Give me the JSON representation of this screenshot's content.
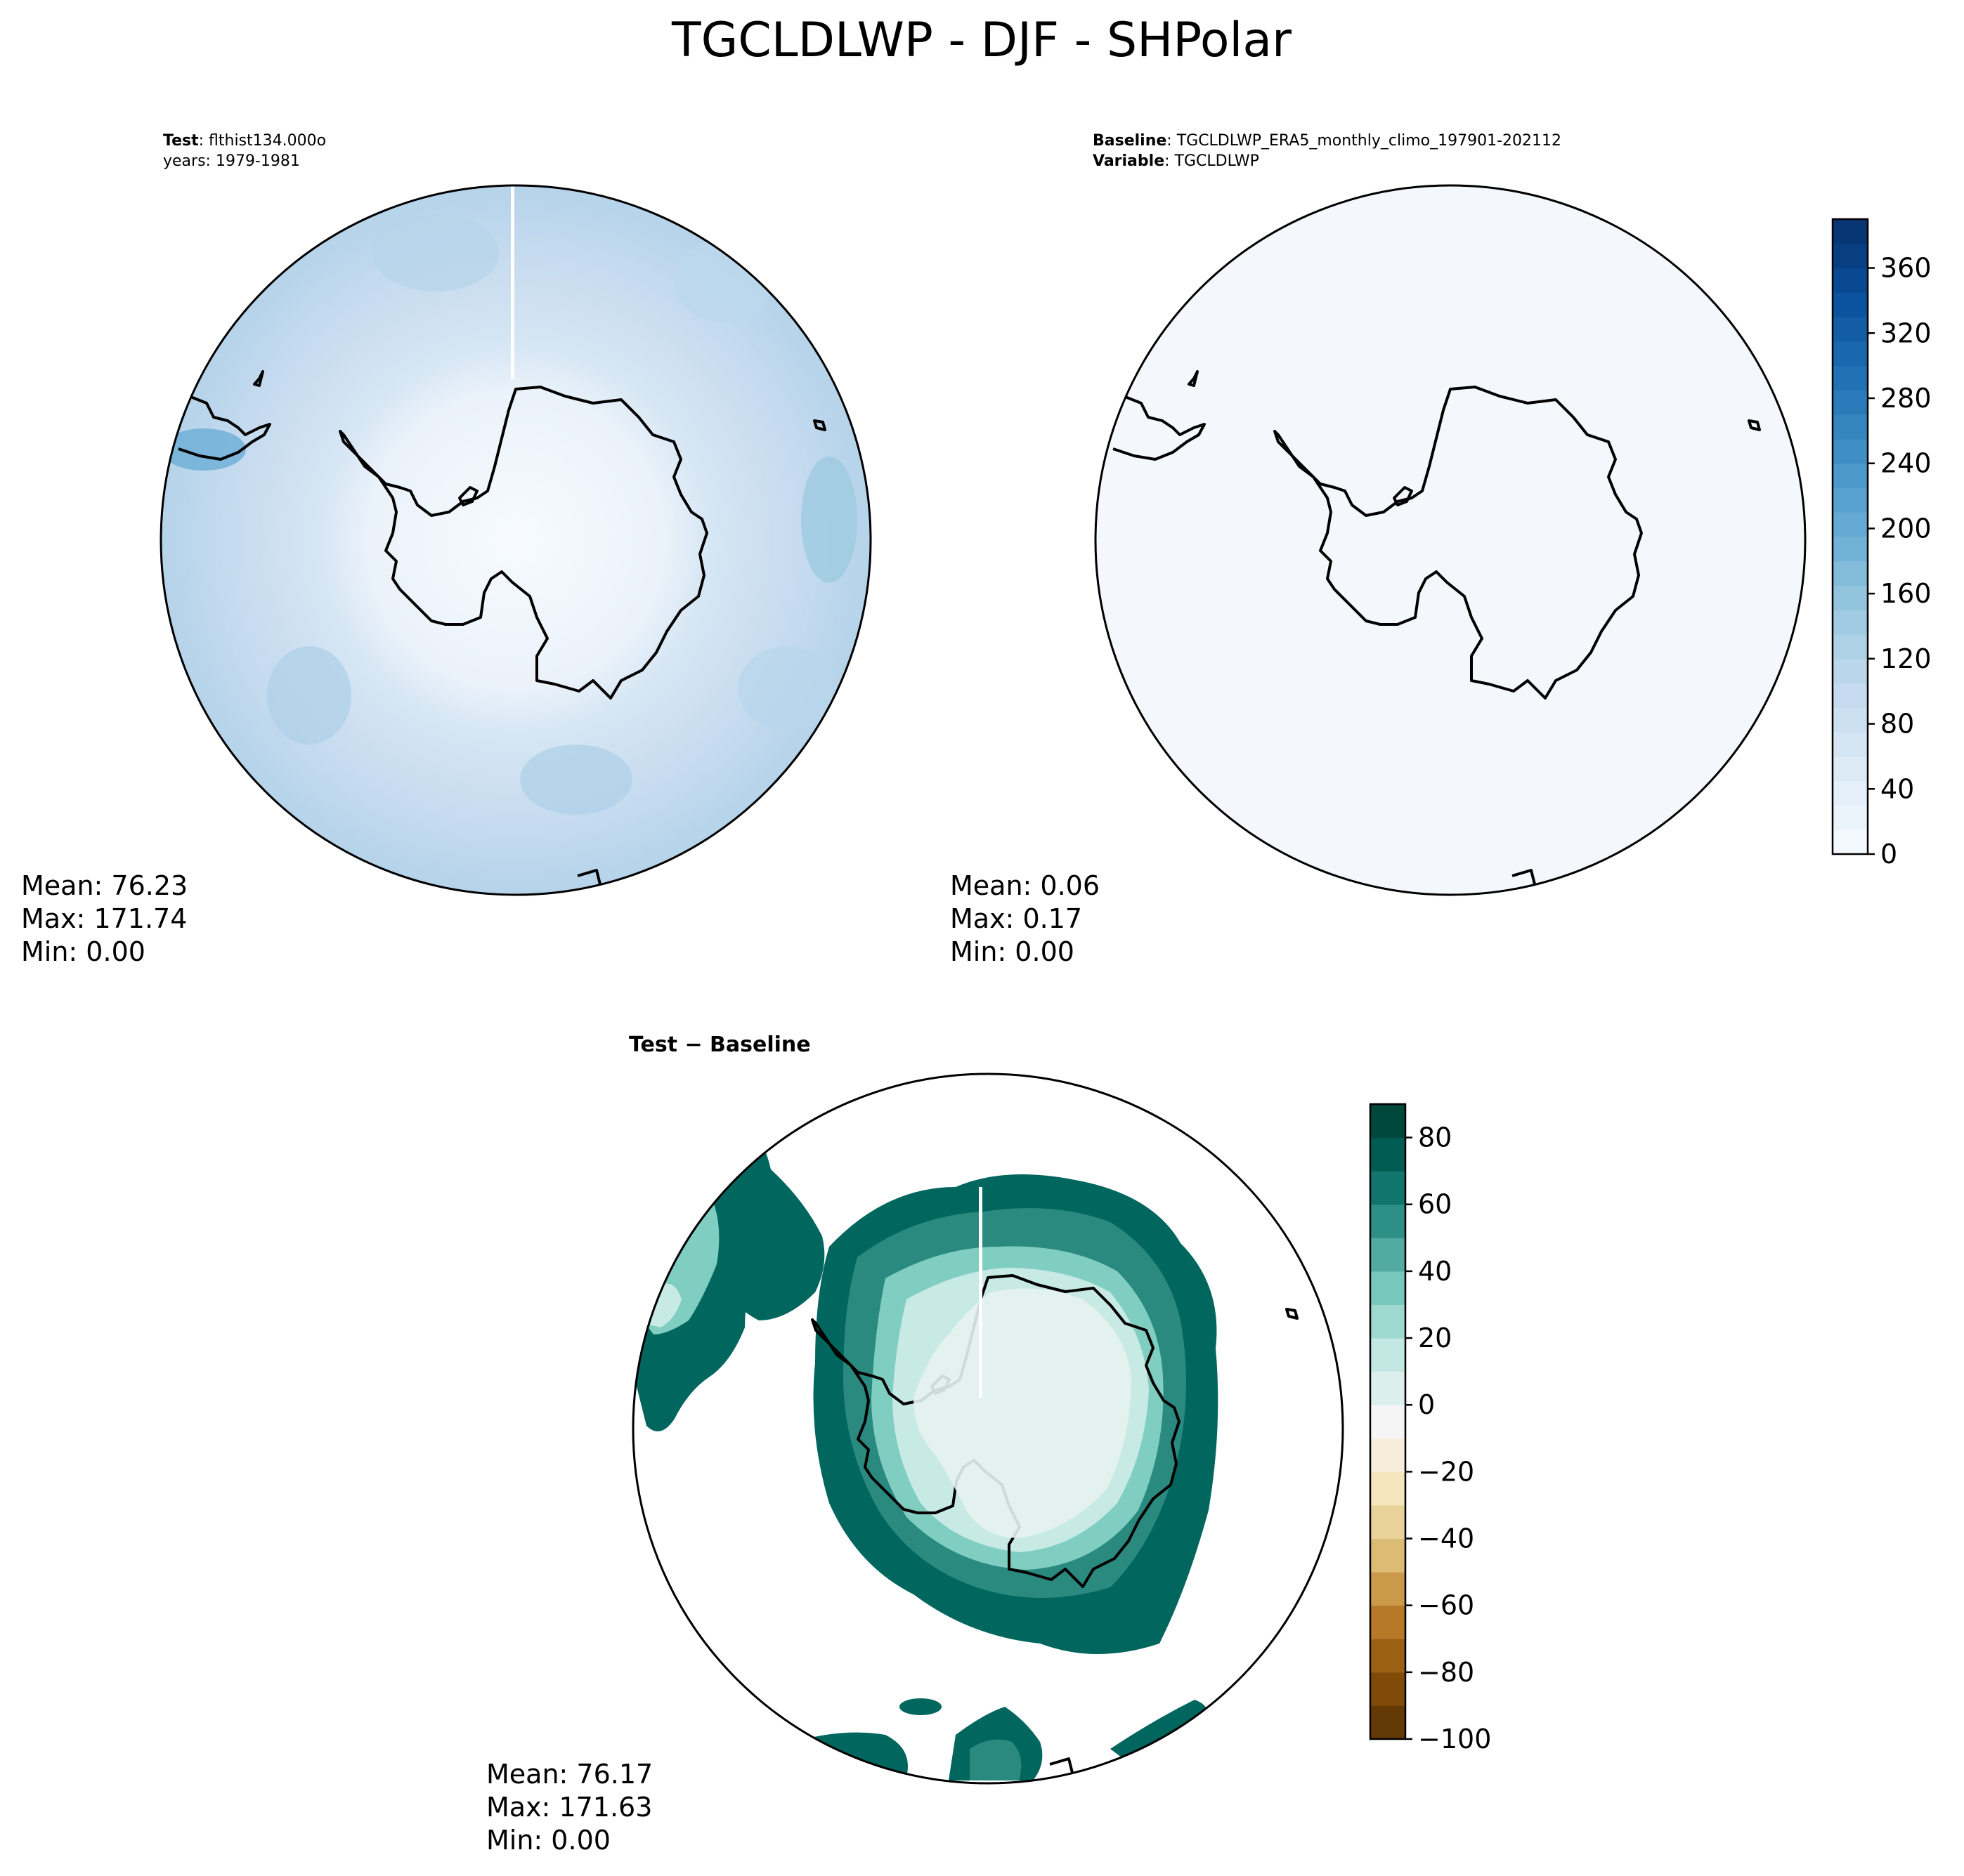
{
  "title": "TGCLDLWP - DJF - SHPolar",
  "test_panel": {
    "label_bold": "Test",
    "label_rest": ": flthist134.000o",
    "years": "years: 1979-1981",
    "mean": "Mean: 76.23",
    "max": "Max: 171.74",
    "min": "Min:  0.00"
  },
  "baseline_panel": {
    "label_bold": "Baseline",
    "label_rest": ": TGCLDLWP_ERA5_monthly_climo_197901-202112",
    "variable_bold": "Variable",
    "variable_rest": ": TGCLDLWP",
    "mean": "Mean:  0.06",
    "max": "Max:  0.17",
    "min": "Min:  0.00"
  },
  "diff_panel": {
    "label": "Test − Baseline",
    "mean": "Mean: 76.17",
    "max": "Max: 171.63",
    "min": "Min:  0.00"
  },
  "colors": {
    "blues": [
      "#f7fbff",
      "#deebf7",
      "#c6dbef",
      "#9ecae1",
      "#6baed6",
      "#4292c6",
      "#2171b5",
      "#08519c",
      "#08306b"
    ],
    "brbg": [
      "#543005",
      "#8c510a",
      "#bf812d",
      "#dfc27d",
      "#f6e8c3",
      "#f5f5f5",
      "#c7eae5",
      "#80cdc1",
      "#35978f",
      "#01665e",
      "#003c30"
    ]
  },
  "chart_data": [
    {
      "type": "heatmap",
      "panel": "test",
      "projection": "south-polar-stereographic",
      "colorbar_shared_with": "baseline",
      "stats": {
        "mean": 76.23,
        "max": 171.74,
        "min": 0.0
      },
      "field_note": "values 0 over Antarctica rising to ~80-170 over Southern Ocean"
    },
    {
      "type": "heatmap",
      "panel": "baseline",
      "projection": "south-polar-stereographic",
      "stats": {
        "mean": 0.06,
        "max": 0.17,
        "min": 0.0
      },
      "colorbar": {
        "range": [
          0,
          390
        ],
        "levels_step": 15,
        "ticks": [
          0,
          40,
          80,
          120,
          160,
          200,
          240,
          280,
          320,
          360
        ],
        "tick_labels": [
          "0",
          "40",
          "80",
          "120",
          "160",
          "200",
          "240",
          "280",
          "320",
          "360"
        ]
      }
    },
    {
      "type": "heatmap",
      "panel": "difference",
      "projection": "south-polar-stereographic",
      "stats": {
        "mean": 76.17,
        "max": 171.63,
        "min": 0.0
      },
      "colorbar": {
        "range": [
          -100,
          90
        ],
        "levels_step": 10,
        "ticks": [
          -100,
          -80,
          -60,
          -40,
          -20,
          0,
          20,
          40,
          60,
          80
        ],
        "tick_labels": [
          "−100",
          "−80",
          "−60",
          "−40",
          "−20",
          "0",
          "20",
          "40",
          "60",
          "80"
        ]
      }
    }
  ]
}
